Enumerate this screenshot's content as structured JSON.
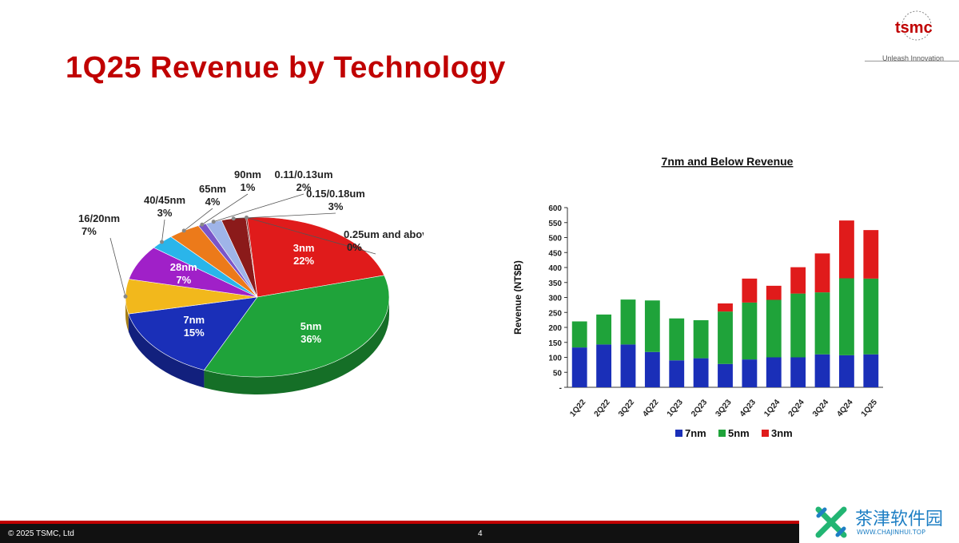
{
  "slide": {
    "title": "1Q25 Revenue by Technology",
    "logo": "tsmc",
    "tagline": "Unleash Innovation",
    "footer_copyright": "© 2025 TSMC, Ltd",
    "page_number": "4"
  },
  "watermark": {
    "text": "茶津软件园",
    "sub": "WWW.CHAJINHUI.TOP"
  },
  "chart_data": [
    {
      "type": "pie",
      "title": "",
      "slices": [
        {
          "label": "3nm",
          "value": 22,
          "color": "#e01b1b"
        },
        {
          "label": "5nm",
          "value": 36,
          "color": "#1fa33a"
        },
        {
          "label": "7nm",
          "value": 15,
          "color": "#1a2fb8"
        },
        {
          "label": "16/20nm",
          "value": 7,
          "color": "#f2b81c"
        },
        {
          "label": "28nm",
          "value": 7,
          "color": "#a020c8"
        },
        {
          "label": "40/45nm",
          "value": 3,
          "color": "#2ab5ea"
        },
        {
          "label": "65nm",
          "value": 4,
          "color": "#ec7a1a"
        },
        {
          "label": "90nm",
          "value": 1,
          "color": "#7a55c8"
        },
        {
          "label": "0.11/0.13um",
          "value": 2,
          "color": "#9fb4e8"
        },
        {
          "label": "0.15/0.18um",
          "value": 3,
          "color": "#8b1a1a"
        },
        {
          "label": "0.25um and above",
          "value": 0,
          "color": "#6a0f0f"
        }
      ],
      "inside_labels": [
        "3nm",
        "5nm",
        "7nm",
        "28nm"
      ]
    },
    {
      "type": "bar",
      "stacked": true,
      "title": "7nm and Below Revenue",
      "ylabel": "Revenue (NT$B)",
      "xlabel": "",
      "ylim": [
        0,
        600
      ],
      "yticks": [
        0,
        50,
        100,
        150,
        200,
        250,
        300,
        350,
        400,
        450,
        500,
        550,
        600
      ],
      "categories": [
        "1Q22",
        "2Q22",
        "3Q22",
        "4Q22",
        "1Q23",
        "2Q23",
        "3Q23",
        "4Q23",
        "1Q24",
        "2Q24",
        "3Q24",
        "4Q24",
        "1Q25"
      ],
      "series": [
        {
          "name": "7nm",
          "color": "#1a2fb8",
          "values": [
            133,
            143,
            143,
            118,
            90,
            97,
            78,
            93,
            100,
            100,
            110,
            107,
            110
          ]
        },
        {
          "name": "5nm",
          "color": "#1fa33a",
          "values": [
            87,
            100,
            150,
            172,
            140,
            127,
            175,
            190,
            192,
            213,
            207,
            257,
            253
          ]
        },
        {
          "name": "3nm",
          "color": "#e01b1b",
          "values": [
            0,
            0,
            0,
            0,
            0,
            0,
            27,
            80,
            47,
            88,
            130,
            193,
            162
          ]
        }
      ],
      "legend_position": "bottom"
    }
  ]
}
